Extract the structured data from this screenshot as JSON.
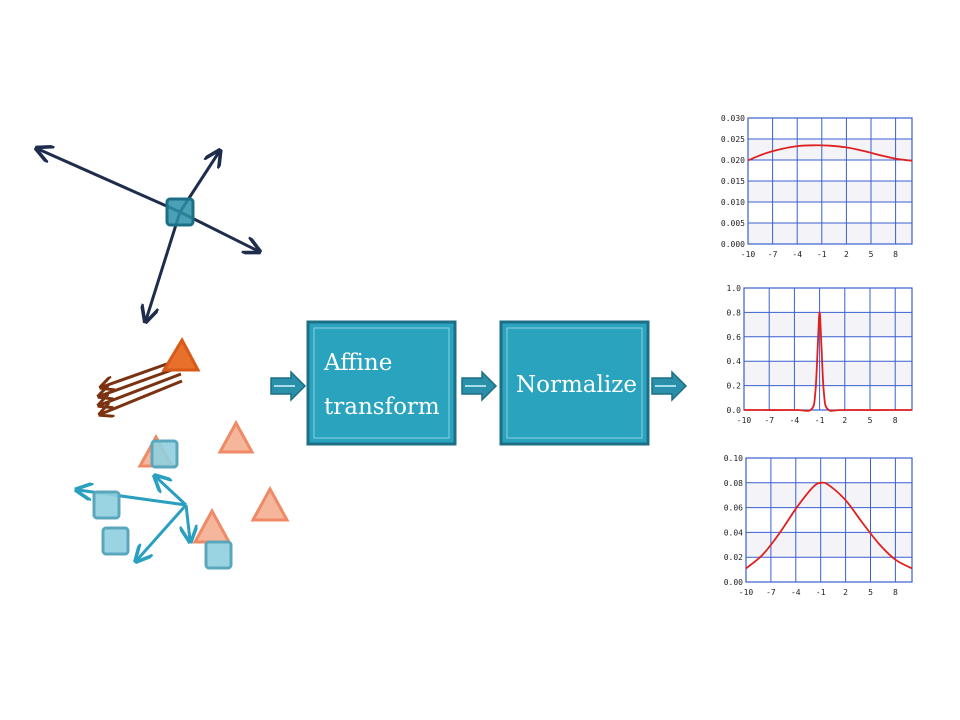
{
  "diagram": {
    "boxes": [
      {
        "id": "affine",
        "lines": [
          "Affine",
          "transform"
        ]
      },
      {
        "id": "normalize",
        "lines": [
          "Normalize"
        ]
      }
    ],
    "colors": {
      "box_fill": "#2aa3bf",
      "box_border": "#1d6f86",
      "arrow_fill": "#2a8fa8",
      "dark_arrow": "#1f2d4d",
      "brown_arrow": "#7a3210",
      "cyan_arrow": "#2a9fc0",
      "orange_triangle": "#e8702a",
      "light_triangle": "#f3a98a",
      "square_fill": "#8fcfdf",
      "curve": "#e02020",
      "grid": "#3a5fd0"
    }
  },
  "chart_data": [
    {
      "type": "line",
      "title": "",
      "xlabel": "",
      "ylabel": "",
      "x_ticks": [
        "-10",
        "-7",
        "-4",
        "-1",
        "2",
        "5",
        "8"
      ],
      "y_ticks": [
        "0.000",
        "0.005",
        "0.010",
        "0.015",
        "0.020",
        "0.025",
        "0.030"
      ],
      "xlim": [
        -10,
        10
      ],
      "ylim": [
        0,
        0.03
      ],
      "series": [
        {
          "x": [
            -10,
            -8,
            -6,
            -4,
            -2,
            0,
            2,
            4,
            6,
            8,
            10
          ],
          "values": [
            0.0199,
            0.0215,
            0.0226,
            0.0233,
            0.0235,
            0.0234,
            0.023,
            0.0222,
            0.0212,
            0.0203,
            0.0198
          ]
        }
      ]
    },
    {
      "type": "line",
      "title": "",
      "xlabel": "",
      "ylabel": "",
      "x_ticks": [
        "-10",
        "-7",
        "-4",
        "-1",
        "2",
        "5",
        "8"
      ],
      "y_ticks": [
        "0.0",
        "0.2",
        "0.4",
        "0.6",
        "0.8",
        "1.0"
      ],
      "xlim": [
        -10,
        10
      ],
      "ylim": [
        0,
        1.0
      ],
      "series": [
        {
          "x": [
            -10,
            -4,
            -2,
            -1.5,
            -1.2,
            -1,
            -0.8,
            -0.5,
            0,
            2,
            10
          ],
          "values": [
            0,
            0,
            0.005,
            0.15,
            0.55,
            0.8,
            0.55,
            0.15,
            0.005,
            0,
            0
          ]
        }
      ]
    },
    {
      "type": "line",
      "title": "",
      "xlabel": "",
      "ylabel": "",
      "x_ticks": [
        "-10",
        "-7",
        "-4",
        "-1",
        "2",
        "5",
        "8"
      ],
      "y_ticks": [
        "0.00",
        "0.02",
        "0.04",
        "0.06",
        "0.08",
        "0.10"
      ],
      "xlim": [
        -10,
        10
      ],
      "ylim": [
        0,
        0.1
      ],
      "series": [
        {
          "x": [
            -10,
            -8,
            -6,
            -4,
            -2,
            -1,
            0,
            2,
            4,
            6,
            8,
            10
          ],
          "values": [
            0.011,
            0.022,
            0.039,
            0.059,
            0.076,
            0.08,
            0.078,
            0.066,
            0.048,
            0.031,
            0.018,
            0.011
          ]
        }
      ]
    }
  ]
}
